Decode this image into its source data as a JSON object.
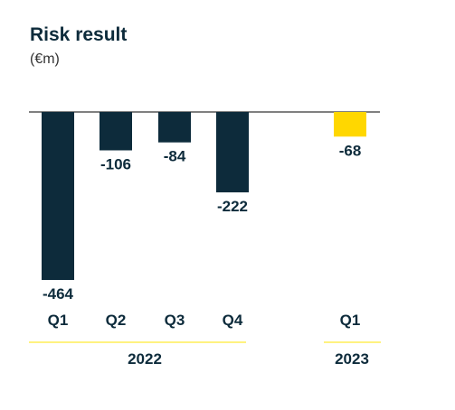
{
  "chart_data": {
    "type": "bar",
    "title": "Risk result",
    "subtitle": "(€m)",
    "categories": [
      "Q1",
      "Q2",
      "Q3",
      "Q4",
      "Q1"
    ],
    "values": [
      -464,
      -106,
      -84,
      -222,
      -68
    ],
    "value_labels": [
      "-464",
      "-106",
      "-84",
      "-222",
      "-68"
    ],
    "groups": [
      {
        "label": "2022",
        "categories": [
          "Q1",
          "Q2",
          "Q3",
          "Q4"
        ]
      },
      {
        "label": "2023",
        "categories": [
          "Q1"
        ]
      }
    ],
    "colors": [
      "#0d2b3b",
      "#0d2b3b",
      "#0d2b3b",
      "#0d2b3b",
      "#ffd700"
    ],
    "group_underline_color": "#ffe600",
    "ylim": [
      -464,
      0
    ],
    "grid": false,
    "legend": "none"
  }
}
